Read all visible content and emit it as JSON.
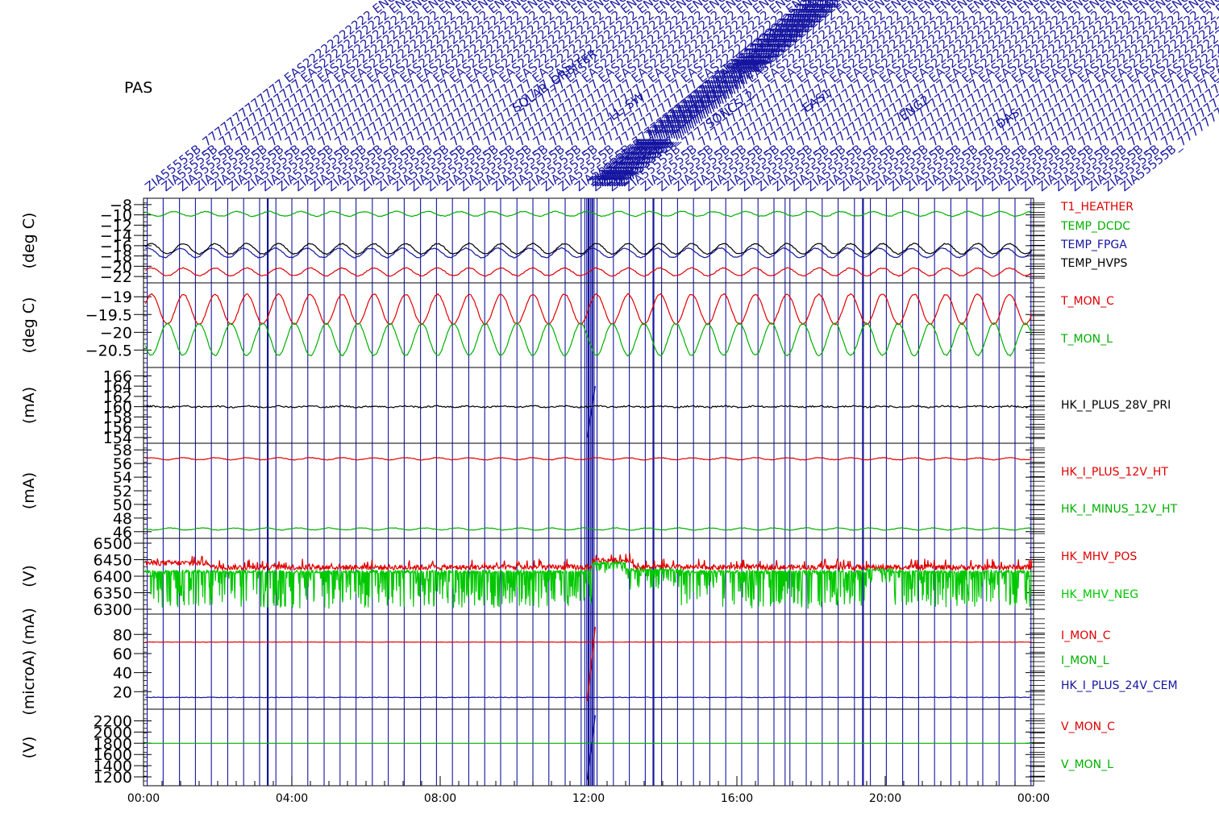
{
  "instrument_label": "PAS",
  "colors": {
    "red": "#e00000",
    "green": "#00b000",
    "blue": "#1414a0",
    "black": "#000000",
    "bright_green": "#00c800"
  },
  "event_markers": {
    "label_samples": [
      "ZIA55555B_7777777777777 EAS22222222222 ENG2_MODE",
      "ZIA55555B_7777777777777 EAS22222222222 ENG2_MODE",
      "ZIA55555B_7777777777777 EAS22222222222 ENG2_MODE",
      "ZIA55555B_7777777777777 EAS22222222222 ENG2_MODE",
      "ZIA55555B_7777777777777 EAS22222222222 ENG2_MODE",
      "ZIA55555B_7777777777777 EAS22222222222 ENG2_MODE",
      "ZIA55555B_7777777777777 EAS22222222222 ENG2_MODE",
      "ZIA55555B_7777777777777 EAS22222222222 ENG2_MODE",
      "ZIA55555B_7777777777777 EAS22222222222 ENG2_MODE",
      "ZIA55555B_7777777777777 EAS22222222222 ENG2_MODE",
      "ZIA55555B_7777777777777 EAS22222222222 ENG2_MODE",
      "ZIA55555B_7777777777777 EAS22222222222 ENG2_MODE",
      "ZIA55555B_7777777777777 EAS22222222222 ENG2_MODE",
      "ZIA55555B_7777777777777 EAS22222222222 ENG2_MODE",
      "ZIA55555B_7777777777777 EAS22222222222 ENG2_MODE",
      "ZIA55555B_7777777777777 EAS22222222222 ENG2_MODE",
      "ZIA55555B_7777777777777 EAS22222222222 ENG2_MODE",
      "ZIA55555B_7777777777777 EAS22222222222 ENG2_MODE",
      "ZIA55555B_7777777777777 EAS22222222222 ENG2_MODE",
      "ZIA55555B_7777777777777 EAS22222222222 ENG2_MODE",
      "ZIA55555B_7777777777777 EAS22222222222 ENG2_MODE",
      "ZIA55555B_7777777777777 EAS22222222222 ENG2_MODE",
      "ZIA55555B_7777777777777 EAS22222222222 ENG2_MODE",
      "ZIA55555B_7777777777777 EAS22222222222 ENG2_MODE",
      "ZIA55555B_7777777777777 EAS22222222222 ENG2_MODE",
      "ZIA55555B_7777777777777 EAS22222222222 ENG2_MODE",
      "ZIA55555B_7777777777777 EAS22222222222 ENG2_MODE",
      "ZIA55555B_7777777777777 EAS22222222222 ENG2_MODE",
      "ZIA55555B_7777777777777 EAS22222222222 ENG2_MODE",
      "ZIA55555B_7777777777777 EAS22222222222 ENG2_MODE",
      "ZIA55555B_7777777777777 EAS22222222222 ENG2_MODE",
      "ZIA55555B_7777777777777 EAS22222222222 ENG2_MODE",
      "ZIA55555B_7777777777777 EAS22222222222 ENG2_MODE",
      "ZIA55555B_7777777777777 EAS22222222222 ENG2_MODE",
      "ZIA55555B_7777777777777 EAS22222222222 ENG2_MODE",
      "ZIA55555B_7777777777777 EAS22222222222 ENG2_MODE",
      "ZIA55555B_7777777777777 EAS22222222222 ENG2_MODE",
      "ZIA55555B_7777777777777 EAS22222222222 ENG2_MODE",
      "ZIA55555B_7777777777777 EAS22222222222 ENG2_MODE",
      "ZIA55555B_7777777777777 EAS22222222222 ENG2_MODE",
      "ZIA55555B_7777777777777 EAS22222222222 ENG2_MODE",
      "ZIA55555B_7777777777777 EAS22222222222 ENG2_MODE",
      "ZIA55555B_7777777777777 EAS22222222222 ENG2_MODE",
      "ZIA55555B_7777777777777 EAS22222222222 ENG2_MODE",
      "ZIA55555B_7777777777777 EAS22222222222 ENG2_MODE",
      "ZIA55555B_7777777777777 EAS22222222222 ENG2_MODE",
      "ZIA55555B_7777777777777 EAS22222222222 ENG2_MODE",
      "ZIA55555B_7777777777777 EAS22222222222 ENG2_MODE",
      "ZIA55555B_7777777777777 EAS22222222222 ENG2_MODE",
      "ZIA55555B_7777777777777 EAS22222222222 ENG2_MODE",
      "ZIA55555B_7777777777777 EAS22222222222 ENG2_MODE",
      "ZIA55555B_7777777777777 EAS22222222222 ENG2_MODE",
      "ZIA55555B_7777777777777 EAS22222222222 ENG2_MODE",
      "ZIA55555B_7777777777777 EAS22222222222 ENG2_MODE",
      "ZIA55555B_7777777777777 EAS22222222222 ENG2_MODE",
      "ZIA55555B_7777777777777 EAS22222222222 ENG2_MODE",
      "ZIA55555B_7777777777777 EAS22222222222 ENG2_MODE",
      "ZIA55555B_7777777777777 EAS22222222222 ENG2_MODE",
      "ZIA55555B_7777777777777 EAS22222222222 ENG2_MODE",
      "ZIA55555B_7777777777777 EAS22222222222 ENG2_MODE"
    ],
    "overlapping_fragments": [
      "SOLAR_ORBITER",
      "LL_SW",
      "SONCS_2",
      "EAS1",
      "ENG2",
      "DAS"
    ]
  },
  "chart_data": {
    "type": "line",
    "x_range_hours": [
      0,
      24
    ],
    "x_tick_labels": [
      "00:00",
      "04:00",
      "08:00",
      "12:00",
      "16:00",
      "20:00",
      "00:00"
    ],
    "event_times_hours": [
      0.1,
      0.53,
      0.97,
      1.4,
      1.83,
      2.27,
      2.7,
      3.13,
      3.35,
      3.57,
      4.0,
      4.43,
      4.87,
      5.3,
      5.73,
      6.17,
      6.6,
      7.03,
      7.47,
      7.9,
      8.33,
      8.77,
      9.2,
      9.63,
      10.07,
      10.5,
      10.93,
      11.37,
      11.8,
      11.9,
      11.95,
      12.0,
      12.05,
      12.1,
      12.15,
      12.23,
      12.67,
      13.1,
      13.53,
      13.75,
      13.97,
      14.4,
      14.83,
      15.27,
      15.7,
      16.13,
      16.57,
      17.0,
      17.3,
      17.43,
      17.87,
      18.3,
      18.73,
      19.17,
      19.4,
      19.6,
      20.03,
      20.47,
      20.9,
      21.33,
      21.77,
      22.2,
      22.63,
      23.07,
      23.5,
      23.93
    ],
    "panels": [
      {
        "ylabel": "(deg C)",
        "ylim": [
          -22.6,
          -7.4
        ],
        "yticks": [
          -8,
          -10,
          -12,
          -14,
          -16,
          -18,
          -20,
          -22
        ],
        "grid": false,
        "series": [
          {
            "name": "T1_HEATHER",
            "color": "#e00000",
            "legend": true,
            "mean": -21.1,
            "amp": 0.75,
            "period_hours": 0.857,
            "noise": 0.1,
            "phase": 0.0
          },
          {
            "name": "TEMP_DCDC",
            "color": "#00b000",
            "legend": true,
            "mean": -9.8,
            "amp": 0.45,
            "period_hours": 0.857,
            "noise": 0.08,
            "phase": 0.3
          },
          {
            "name": "TEMP_FPGA",
            "color": "#1414a0",
            "legend": true,
            "mean": -17.4,
            "amp": 0.9,
            "period_hours": 0.857,
            "noise": 0.1,
            "phase": 0.1
          },
          {
            "name": "TEMP_HVPS",
            "color": "#000000",
            "legend": true,
            "mean": -16.6,
            "amp": 1.0,
            "period_hours": 0.857,
            "noise": 0.1,
            "phase": 0.0
          }
        ]
      },
      {
        "ylabel": "(deg C)",
        "ylim": [
          -20.9,
          -18.7
        ],
        "yticks": [
          -19.0,
          -19.5,
          -20.0,
          -20.5
        ],
        "grid": false,
        "series": [
          {
            "name": "T_MON_C",
            "color": "#e00000",
            "legend": true,
            "mean": -19.35,
            "amp": 0.42,
            "period_hours": 0.857,
            "noise": 0.02,
            "phase": 0.0
          },
          {
            "name": "T_MON_L",
            "color": "#00b000",
            "legend": true,
            "mean": -20.2,
            "amp": 0.45,
            "period_hours": 0.857,
            "noise": 0.02,
            "phase": 0.5
          }
        ]
      },
      {
        "ylabel": "(mA)",
        "ylim": [
          153.5,
          167
        ],
        "yticks": [
          166,
          164,
          162,
          160,
          158,
          156,
          154
        ],
        "grid": false,
        "series": [
          {
            "name": "HK_I_PLUS_28V_PRI",
            "color": "#000000",
            "legend": true,
            "mean": 160.0,
            "amp": 0.1,
            "period_hours": 0.857,
            "noise": 0.15,
            "phase": 0.0
          }
        ],
        "spike": {
          "time_hours": 12.05,
          "low": 154.0,
          "high": 164.0,
          "color": "#1414a0"
        }
      },
      {
        "ylabel": "(mA)",
        "ylim": [
          45.5,
          58.5
        ],
        "yticks": [
          58,
          56,
          54,
          52,
          50,
          48,
          46
        ],
        "grid": false,
        "series": [
          {
            "name": "HK_I_PLUS_12V_HT",
            "color": "#e00000",
            "legend": true,
            "mean": 56.7,
            "amp": 0.15,
            "period_hours": 0.857,
            "noise": 0.05,
            "phase": 0.0
          },
          {
            "name": "HK_I_MINUS_12V_HT",
            "color": "#00b000",
            "legend": true,
            "mean": 46.4,
            "amp": 0.15,
            "period_hours": 0.857,
            "noise": 0.05,
            "phase": 0.4
          }
        ]
      },
      {
        "ylabel": "(V)",
        "ylim": [
          6295,
          6505
        ],
        "yticks": [
          6500,
          6450,
          6400,
          6350,
          6300
        ],
        "grid": false,
        "series": [
          {
            "name": "HK_MHV_POS",
            "color": "#e00000",
            "legend": true,
            "mean": 6427,
            "amp": 0,
            "period_hours": 1,
            "noise": 8,
            "phase": 0.0,
            "kind": "mhv_pos"
          },
          {
            "name": "HK_MHV_NEG",
            "color": "#00c800",
            "legend": true,
            "mean": 6395,
            "amp": 0,
            "period_hours": 1,
            "noise": 0,
            "phase": 0.0,
            "kind": "mhv_neg"
          }
        ]
      },
      {
        "ylabel": "(microA) (mA)",
        "ylim": [
          5,
          98
        ],
        "yticks": [
          80,
          60,
          40,
          20
        ],
        "grid": false,
        "series": [
          {
            "name": "I_MON_C",
            "color": "#e00000",
            "legend": true,
            "mean": 72,
            "amp": 0,
            "period_hours": 1,
            "noise": 0.2,
            "phase": 0.0
          },
          {
            "name": "I_MON_L",
            "color": "#00b000",
            "legend": true,
            "mean": null,
            "amp": 0,
            "period_hours": 1,
            "noise": 0,
            "phase": 0.0
          },
          {
            "name": "HK_I_PLUS_24V_CEM",
            "color": "#1414a0",
            "legend": true,
            "mean": 14,
            "amp": 0,
            "period_hours": 1,
            "noise": 0.3,
            "phase": 0.0
          }
        ],
        "spike": {
          "time_hours": 12.05,
          "low": 10.0,
          "high": 88.0,
          "color": "#e00000"
        }
      },
      {
        "ylabel": "(V)",
        "ylim": [
          1100,
          2350
        ],
        "yticks": [
          2200,
          2000,
          1800,
          1600,
          1400,
          1200
        ],
        "grid": false,
        "series": [
          {
            "name": "V_MON_C",
            "color": "#e00000",
            "legend": true,
            "mean": null,
            "amp": 0,
            "period_hours": 1,
            "noise": 0,
            "phase": 0.0
          },
          {
            "name": "V_MON_L",
            "color": "#00b000",
            "legend": true,
            "mean": 1800,
            "amp": 0,
            "period_hours": 1,
            "noise": 0,
            "phase": 0.0
          }
        ],
        "spike": {
          "time_hours": 12.05,
          "low": 1150.0,
          "high": 2300.0,
          "color": "#1414a0"
        }
      }
    ]
  }
}
